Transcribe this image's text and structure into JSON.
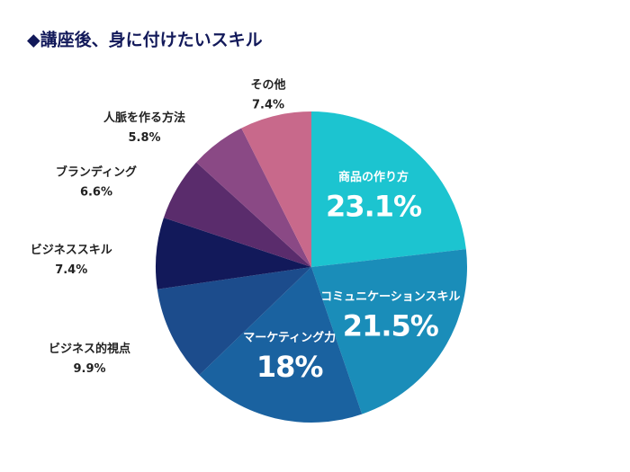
{
  "chart_data": {
    "type": "pie",
    "title": "◆講座後、身に付けたいスキル",
    "categories": [
      "商品の作り方",
      "コミュニケーションスキル",
      "マーケティング力",
      "ビジネス的視点",
      "ビジネススキル",
      "ブランディング",
      "人脈を作る方法",
      "その他"
    ],
    "values": [
      23.1,
      21.5,
      18,
      9.9,
      7.4,
      6.6,
      5.8,
      7.4
    ],
    "value_labels": [
      "23.1%",
      "21.5%",
      "18%",
      "9.9%",
      "7.4%",
      "6.6%",
      "5.8%",
      "7.4%"
    ],
    "colors": [
      "#1cc4d0",
      "#1a8db9",
      "#1a62a0",
      "#1c4c8c",
      "#12195a",
      "#5a2c6c",
      "#8a4985",
      "#c8698b"
    ]
  }
}
